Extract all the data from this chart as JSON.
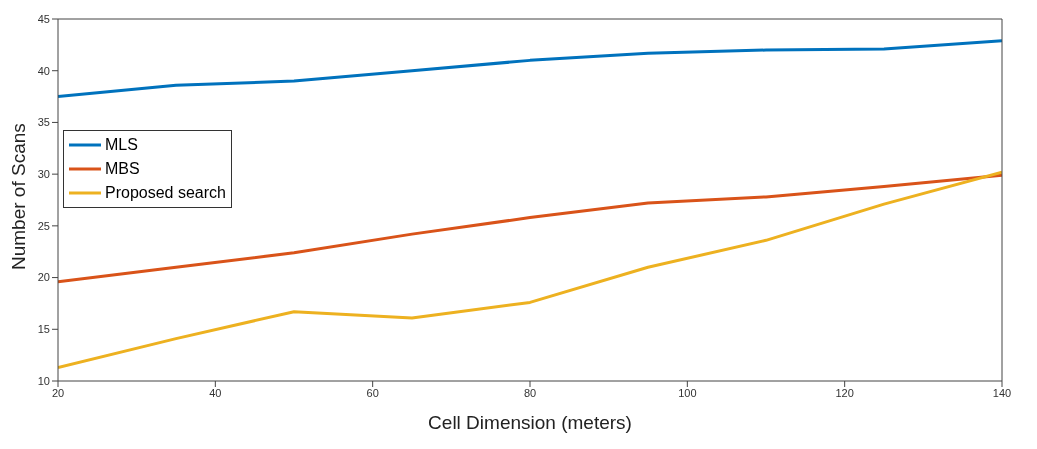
{
  "chart_data": {
    "type": "line",
    "xlabel": "Cell Dimension (meters)",
    "ylabel": "Number of Scans",
    "x": [
      20,
      35,
      50,
      65,
      80,
      95,
      110,
      125,
      140
    ],
    "series": [
      {
        "name": "MLS",
        "color": "#0072bd",
        "values": [
          37.5,
          38.6,
          39.0,
          40.0,
          41.0,
          41.7,
          42.0,
          42.1,
          42.9
        ]
      },
      {
        "name": "MBS",
        "color": "#d95319",
        "values": [
          19.6,
          21.0,
          22.4,
          24.2,
          25.8,
          27.2,
          27.8,
          28.8,
          29.9
        ]
      },
      {
        "name": "Proposed search",
        "color": "#edb120",
        "values": [
          11.3,
          14.1,
          16.7,
          16.1,
          17.6,
          21.0,
          23.6,
          27.1,
          30.2
        ]
      }
    ],
    "xlim": [
      20,
      140
    ],
    "xticks": [
      20,
      40,
      60,
      80,
      100,
      120,
      140
    ],
    "ylim": [
      10,
      45
    ],
    "yticks": [
      10,
      15,
      20,
      25,
      30,
      35,
      40,
      45
    ],
    "grid": false,
    "legend": "left",
    "marker": "none",
    "line_style": "solid"
  }
}
